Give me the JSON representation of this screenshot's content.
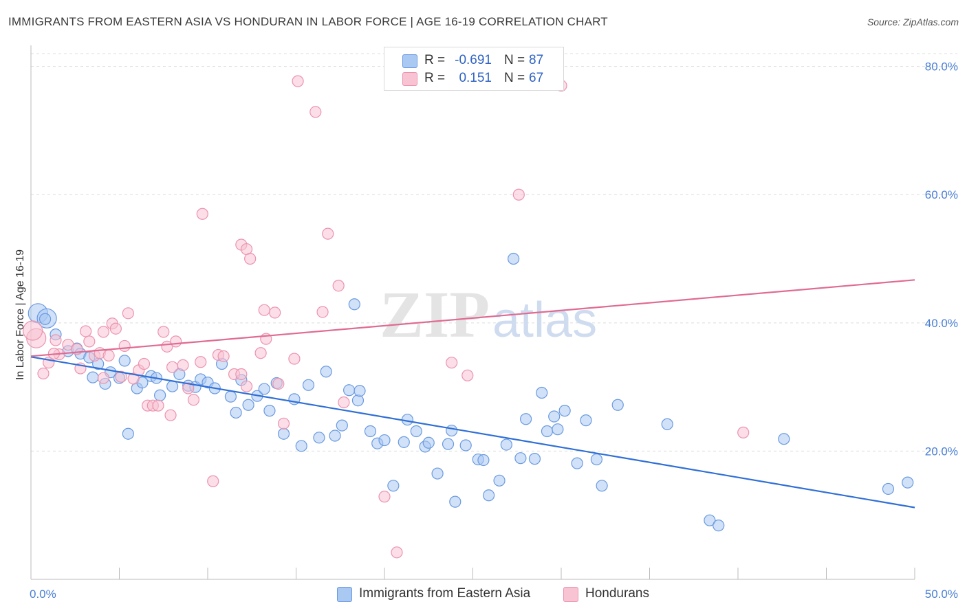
{
  "header": {
    "title": "IMMIGRANTS FROM EASTERN ASIA VS HONDURAN IN LABOR FORCE | AGE 16-19 CORRELATION CHART",
    "source": "Source: ZipAtlas.com"
  },
  "watermark": {
    "zip": "ZIP",
    "atlas": "atlas"
  },
  "legend": {
    "rows": [
      {
        "r_label": "R =",
        "r_value": "-0.691",
        "n_label": "N =",
        "n_value": "87",
        "color": "#a9c8f2",
        "border": "#6a9ae0"
      },
      {
        "r_label": "R =",
        "r_value": "0.151",
        "n_label": "N =",
        "n_value": "67",
        "color": "#f8c3d3",
        "border": "#ec93ae"
      }
    ]
  },
  "bottom_legend": {
    "items": [
      {
        "label": "Immigrants from Eastern Asia",
        "color": "#a9c8f2",
        "border": "#6a9ae0"
      },
      {
        "label": "Hondurans",
        "color": "#f8c3d3",
        "border": "#ec93ae"
      }
    ]
  },
  "chart_data": {
    "type": "scatter",
    "ylabel": "In Labor Force | Age 16-19",
    "xlim": [
      0,
      50
    ],
    "ylim": [
      0,
      82
    ],
    "x_tick_labels": [
      "0.0%",
      "50.0%"
    ],
    "y_ticks": [
      20,
      40,
      60,
      80
    ],
    "y_tick_labels": [
      "20.0%",
      "40.0%",
      "60.0%",
      "80.0%"
    ],
    "grid": true,
    "series": [
      {
        "name": "Immigrants from Eastern Asia",
        "color": "#6a9ae0",
        "fill": "#a9c8f2",
        "trend": {
          "x0": 0,
          "y0": 34.7,
          "x1": 50,
          "y1": 11.2,
          "color": "#2f6fd6"
        },
        "points": [
          [
            0.4,
            41.5
          ],
          [
            0.9,
            40.7
          ],
          [
            1.4,
            38.2
          ],
          [
            2.1,
            35.6
          ],
          [
            2.6,
            36.0
          ],
          [
            2.8,
            35.2
          ],
          [
            3.3,
            34.6
          ],
          [
            3.5,
            31.5
          ],
          [
            3.8,
            33.6
          ],
          [
            4.2,
            30.5
          ],
          [
            4.5,
            32.3
          ],
          [
            5.0,
            31.4
          ],
          [
            5.3,
            34.1
          ],
          [
            5.5,
            22.7
          ],
          [
            6.0,
            29.8
          ],
          [
            6.3,
            30.7
          ],
          [
            6.8,
            31.7
          ],
          [
            7.1,
            31.4
          ],
          [
            7.3,
            28.7
          ],
          [
            8.0,
            30.1
          ],
          [
            8.4,
            32.0
          ],
          [
            8.9,
            30.2
          ],
          [
            9.3,
            30.0
          ],
          [
            9.6,
            31.2
          ],
          [
            10.0,
            30.7
          ],
          [
            10.4,
            29.8
          ],
          [
            10.8,
            33.6
          ],
          [
            11.3,
            28.5
          ],
          [
            11.6,
            26.0
          ],
          [
            11.9,
            31.1
          ],
          [
            12.3,
            27.2
          ],
          [
            12.8,
            28.6
          ],
          [
            13.2,
            29.7
          ],
          [
            13.5,
            26.3
          ],
          [
            13.9,
            30.6
          ],
          [
            14.3,
            22.7
          ],
          [
            14.9,
            28.1
          ],
          [
            15.3,
            20.8
          ],
          [
            15.7,
            30.3
          ],
          [
            16.3,
            22.1
          ],
          [
            16.7,
            32.4
          ],
          [
            17.2,
            22.4
          ],
          [
            17.6,
            24.0
          ],
          [
            18.0,
            29.5
          ],
          [
            18.3,
            42.9
          ],
          [
            18.5,
            27.9
          ],
          [
            18.6,
            29.4
          ],
          [
            19.2,
            23.1
          ],
          [
            19.6,
            21.2
          ],
          [
            20.0,
            21.7
          ],
          [
            20.5,
            14.6
          ],
          [
            21.1,
            21.4
          ],
          [
            21.3,
            24.9
          ],
          [
            21.8,
            23.1
          ],
          [
            22.3,
            20.7
          ],
          [
            22.5,
            21.3
          ],
          [
            23.0,
            16.5
          ],
          [
            23.6,
            21.1
          ],
          [
            23.8,
            23.2
          ],
          [
            24.0,
            12.1
          ],
          [
            24.6,
            20.9
          ],
          [
            25.3,
            18.7
          ],
          [
            25.6,
            18.6
          ],
          [
            25.9,
            13.1
          ],
          [
            26.5,
            15.4
          ],
          [
            26.9,
            21.0
          ],
          [
            27.3,
            50.0
          ],
          [
            27.7,
            18.9
          ],
          [
            28.0,
            25.0
          ],
          [
            28.5,
            18.8
          ],
          [
            28.9,
            29.1
          ],
          [
            29.2,
            23.1
          ],
          [
            29.6,
            25.4
          ],
          [
            29.8,
            23.4
          ],
          [
            30.2,
            26.3
          ],
          [
            30.9,
            18.1
          ],
          [
            31.4,
            24.8
          ],
          [
            32.0,
            18.7
          ],
          [
            32.3,
            14.6
          ],
          [
            33.2,
            27.2
          ],
          [
            36.0,
            24.2
          ],
          [
            38.4,
            9.2
          ],
          [
            38.9,
            8.4
          ],
          [
            42.6,
            21.9
          ],
          [
            48.5,
            14.1
          ],
          [
            49.6,
            15.1
          ],
          [
            0.8,
            40.6
          ]
        ]
      },
      {
        "name": "Hondurans",
        "color": "#ec93ae",
        "fill": "#f8c3d3",
        "trend": {
          "x0": 0,
          "y0": 34.8,
          "x1": 50,
          "y1": 46.7,
          "color": "#e06b92"
        },
        "points": [
          [
            0.3,
            37.6
          ],
          [
            0.7,
            32.1
          ],
          [
            1.0,
            33.8
          ],
          [
            1.4,
            37.3
          ],
          [
            1.6,
            35.1
          ],
          [
            2.1,
            36.6
          ],
          [
            2.6,
            35.9
          ],
          [
            2.8,
            32.9
          ],
          [
            3.1,
            38.7
          ],
          [
            3.3,
            37.1
          ],
          [
            3.6,
            34.9
          ],
          [
            3.9,
            35.3
          ],
          [
            4.1,
            38.6
          ],
          [
            4.4,
            34.9
          ],
          [
            4.6,
            39.9
          ],
          [
            4.8,
            39.1
          ],
          [
            5.1,
            31.6
          ],
          [
            5.3,
            36.4
          ],
          [
            5.5,
            41.5
          ],
          [
            5.8,
            31.3
          ],
          [
            6.1,
            32.6
          ],
          [
            6.4,
            33.6
          ],
          [
            6.6,
            27.1
          ],
          [
            6.9,
            27.1
          ],
          [
            7.2,
            27.1
          ],
          [
            7.5,
            38.6
          ],
          [
            7.7,
            36.3
          ],
          [
            7.9,
            25.6
          ],
          [
            8.2,
            37.1
          ],
          [
            8.6,
            33.4
          ],
          [
            8.9,
            29.8
          ],
          [
            9.2,
            28.0
          ],
          [
            9.6,
            33.9
          ],
          [
            9.7,
            57.0
          ],
          [
            10.3,
            15.3
          ],
          [
            10.6,
            35.0
          ],
          [
            10.9,
            34.8
          ],
          [
            11.5,
            32.0
          ],
          [
            11.9,
            32.0
          ],
          [
            11.9,
            52.2
          ],
          [
            12.2,
            51.5
          ],
          [
            12.4,
            50.0
          ],
          [
            13.0,
            35.3
          ],
          [
            13.2,
            42.0
          ],
          [
            13.3,
            37.5
          ],
          [
            13.8,
            41.6
          ],
          [
            14.0,
            30.5
          ],
          [
            14.3,
            24.3
          ],
          [
            14.9,
            34.4
          ],
          [
            15.1,
            77.7
          ],
          [
            16.1,
            72.9
          ],
          [
            16.5,
            41.7
          ],
          [
            16.8,
            53.9
          ],
          [
            17.4,
            45.8
          ],
          [
            17.7,
            27.6
          ],
          [
            20.0,
            12.9
          ],
          [
            20.7,
            4.2
          ],
          [
            23.8,
            33.8
          ],
          [
            24.7,
            31.8
          ],
          [
            27.6,
            60.0
          ],
          [
            30.0,
            77.0
          ],
          [
            40.3,
            22.9
          ],
          [
            12.2,
            30.1
          ],
          [
            8.0,
            33.1
          ],
          [
            4.1,
            31.4
          ],
          [
            1.3,
            35.2
          ],
          [
            0.1,
            38.8
          ]
        ]
      }
    ]
  }
}
